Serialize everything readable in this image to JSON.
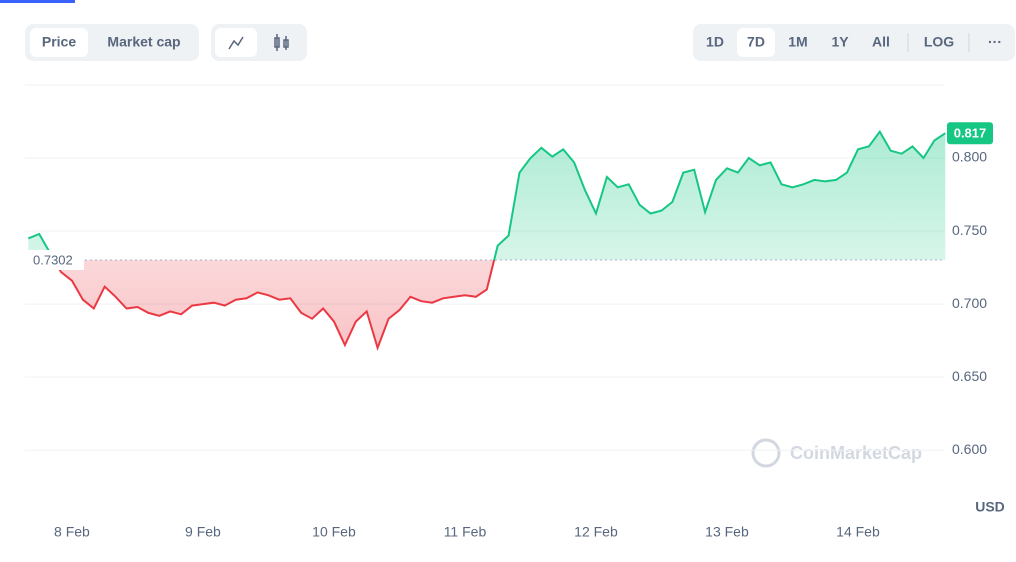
{
  "toolbar": {
    "views": [
      "Price",
      "Market cap"
    ],
    "ranges": [
      "1D",
      "7D",
      "1M",
      "1Y",
      "All"
    ],
    "log": "LOG",
    "more": "···"
  },
  "watermark": "CoinMarketCap",
  "chart_data": {
    "type": "line",
    "categories": [
      null,
      null,
      null,
      null,
      "8 Feb",
      null,
      null,
      null,
      null,
      null,
      null,
      null,
      null,
      null,
      null,
      null,
      "9 Feb",
      null,
      null,
      null,
      null,
      null,
      null,
      null,
      null,
      null,
      null,
      null,
      "10 Feb",
      null,
      null,
      null,
      null,
      null,
      null,
      null,
      null,
      null,
      null,
      null,
      "11 Feb",
      null,
      null,
      null,
      null,
      null,
      null,
      null,
      null,
      null,
      null,
      null,
      "12 Feb",
      null,
      null,
      null,
      null,
      null,
      null,
      null,
      null,
      null,
      null,
      null,
      "13 Feb",
      null,
      null,
      null,
      null,
      null,
      null,
      null,
      null,
      null,
      null,
      null,
      "14 Feb",
      null,
      null,
      null,
      null,
      null,
      null,
      null,
      null
    ],
    "values": [
      0.745,
      0.748,
      0.735,
      0.722,
      0.716,
      0.703,
      0.697,
      0.712,
      0.705,
      0.697,
      0.698,
      0.694,
      0.692,
      0.695,
      0.693,
      0.699,
      0.7,
      0.701,
      0.699,
      0.703,
      0.704,
      0.708,
      0.706,
      0.703,
      0.704,
      0.694,
      0.69,
      0.697,
      0.688,
      0.672,
      0.688,
      0.695,
      0.67,
      0.69,
      0.696,
      0.705,
      0.702,
      0.701,
      0.704,
      0.705,
      0.706,
      0.705,
      0.71,
      0.74,
      0.747,
      0.79,
      0.8,
      0.807,
      0.801,
      0.806,
      0.797,
      0.778,
      0.762,
      0.787,
      0.78,
      0.782,
      0.768,
      0.762,
      0.764,
      0.77,
      0.79,
      0.792,
      0.763,
      0.785,
      0.793,
      0.79,
      0.8,
      0.795,
      0.797,
      0.782,
      0.78,
      0.782,
      0.785,
      0.784,
      0.785,
      0.79,
      0.806,
      0.808,
      0.818,
      0.805,
      0.803,
      0.808,
      0.8,
      0.812,
      0.817
    ],
    "baseline": 0.7302,
    "color_up": "#16c784",
    "color_down": "#ea3943",
    "ylim": [
      0.557,
      0.85
    ],
    "yticks": [
      {
        "value": 0.6,
        "label": "0.600"
      },
      {
        "value": 0.65,
        "label": "0.650"
      },
      {
        "value": 0.7,
        "label": "0.700"
      },
      {
        "value": 0.75,
        "label": "0.750"
      },
      {
        "value": 0.8,
        "label": "0.800"
      }
    ],
    "y_label": "USD",
    "grid": true
  }
}
